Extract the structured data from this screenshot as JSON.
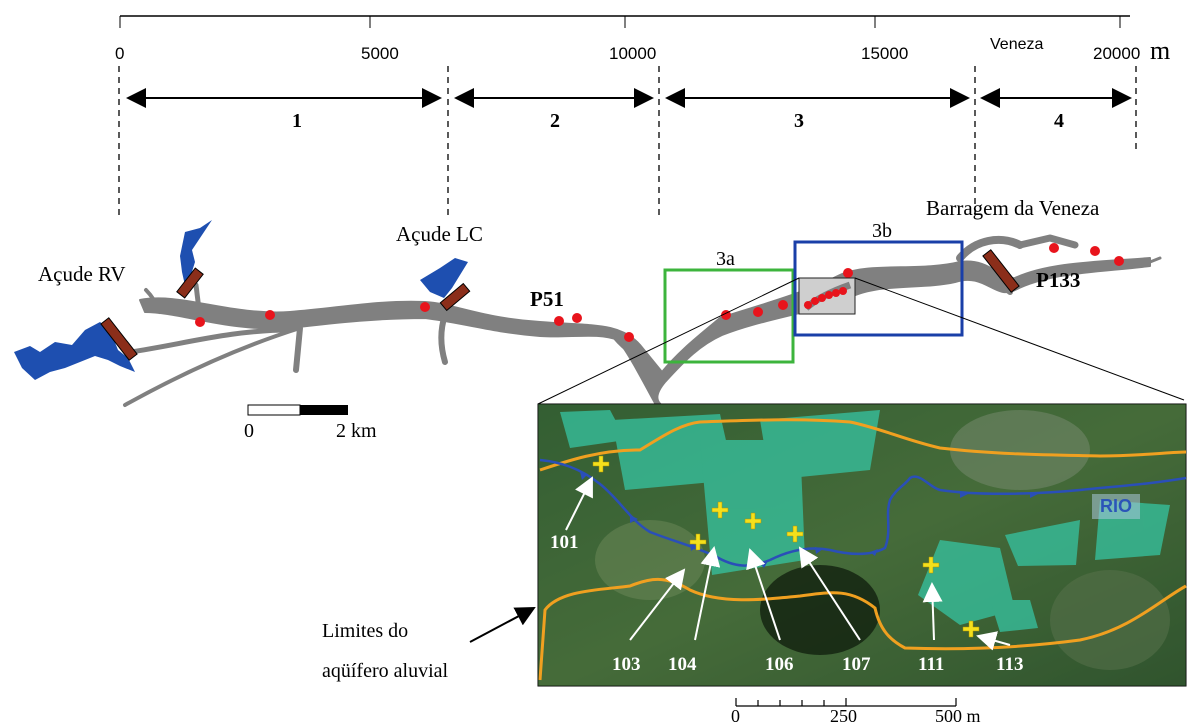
{
  "distance_axis": {
    "ticks": [
      "0",
      "5000",
      "10000",
      "15000",
      "20000"
    ],
    "unit": "m",
    "veneza_label": "Veneza"
  },
  "segments": [
    "1",
    "2",
    "3",
    "4"
  ],
  "places": {
    "acude_rv": "Açude RV",
    "acude_lc": "Açude LC",
    "barragem": "Barragem da Veneza",
    "p51": "P51",
    "p133": "P133"
  },
  "subzones": [
    "3a",
    "3b"
  ],
  "scale_bar_main": {
    "start": "0",
    "end": "2 km"
  },
  "inset": {
    "river_label": "RIO",
    "wells": [
      "101",
      "103",
      "104",
      "106",
      "107",
      "111",
      "113"
    ],
    "legend_label_line1": "Limites do",
    "legend_label_line2": "aqüífero aluvial",
    "scale": {
      "start": "0",
      "mid": "250",
      "end": "500 m"
    }
  },
  "colors": {
    "river": "#808080",
    "reservoir": "#1e4fb0",
    "dam": "#8b2e1a",
    "sample_point": "#e8141c",
    "zone_3a_box": "#3cb43c",
    "zone_3b_box": "#1a3fa8",
    "aquifer_limit": "#f0a020",
    "inset_river": "#2a4fb8",
    "well_marker": "#f4e01c"
  }
}
